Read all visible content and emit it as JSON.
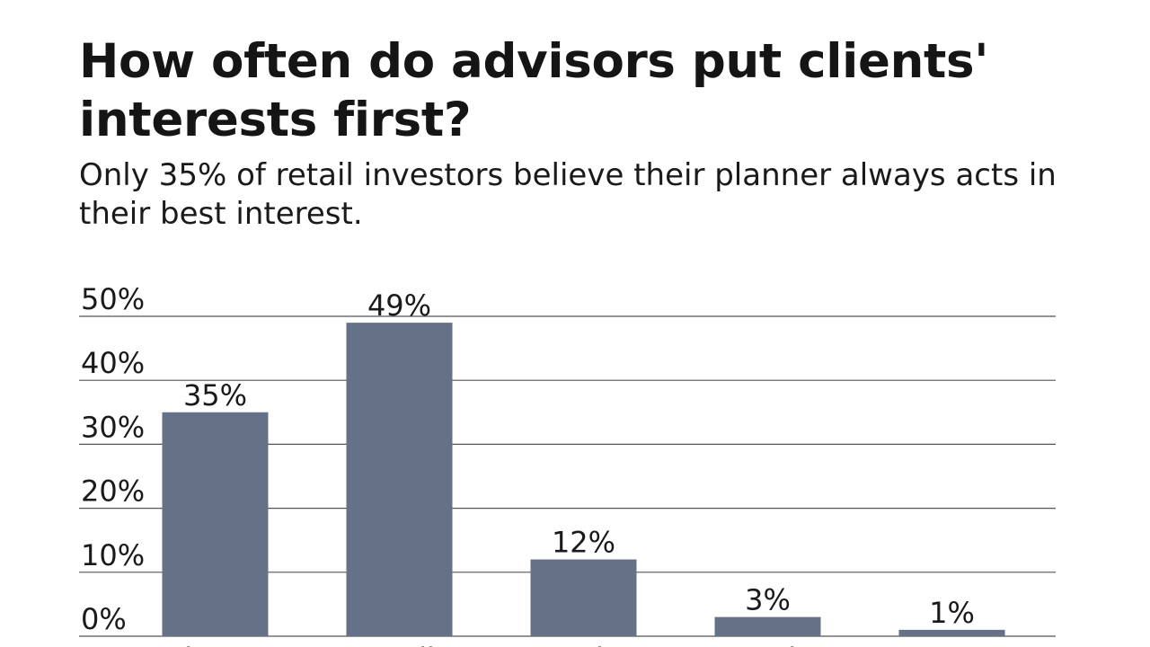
{
  "header": {
    "title": "How often do advisors put clients' interests first?",
    "subtitle": "Only 35% of retail investors believe their planner always acts in their best interest."
  },
  "chart_data": {
    "type": "bar",
    "title": "How often do advisors put clients' interests first?",
    "subtitle": "Only 35% of retail investors believe their planner always acts in their best interest.",
    "categories": [
      "Always",
      "Usually",
      "Sometimes",
      "Rarely",
      "Never"
    ],
    "values": [
      35,
      49,
      12,
      3,
      1
    ],
    "data_labels": [
      "35%",
      "49%",
      "12%",
      "3%",
      "1%"
    ],
    "y_ticks": [
      0,
      10,
      20,
      30,
      40,
      50
    ],
    "y_tick_labels": [
      "0%",
      "10%",
      "20%",
      "30%",
      "40%",
      "50%"
    ],
    "ylim": [
      0,
      50
    ],
    "xlabel": "",
    "ylabel": "",
    "grid": true,
    "legend": "none",
    "bar_color": "#647186",
    "grid_color": "#555555"
  }
}
